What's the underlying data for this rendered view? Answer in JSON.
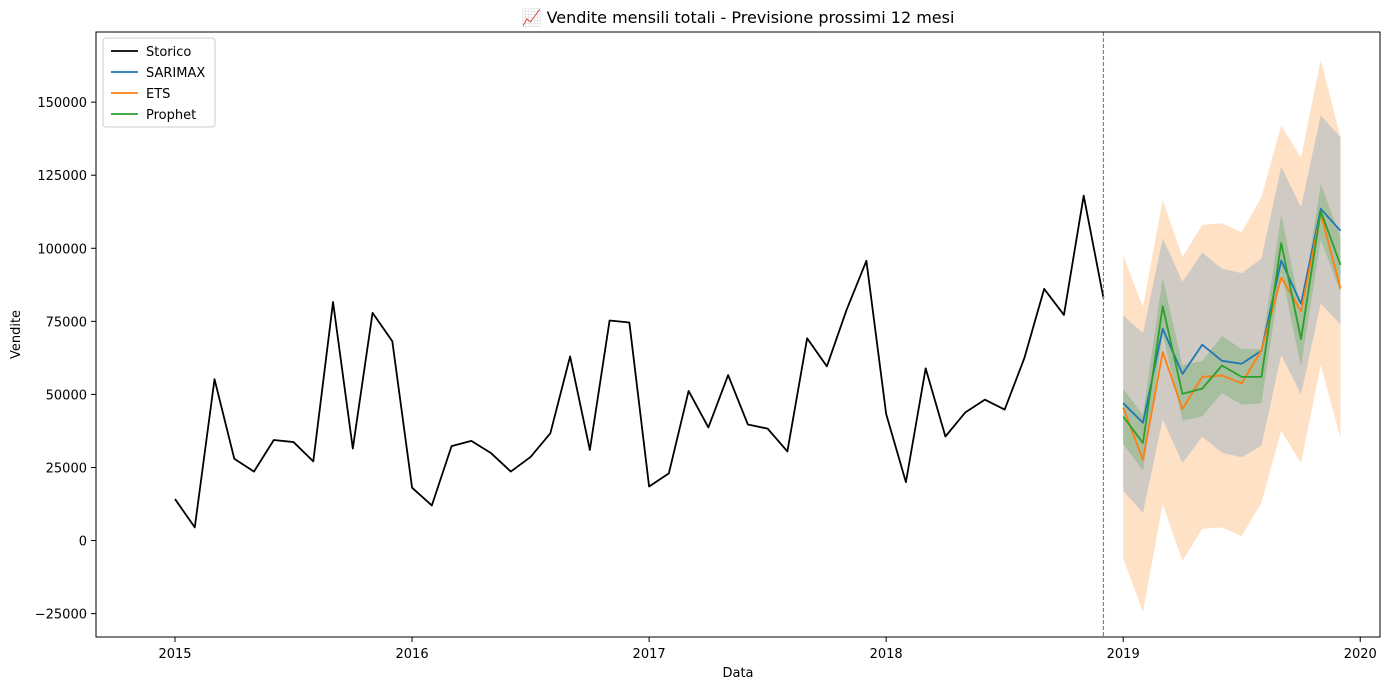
{
  "chart_data": {
    "type": "line",
    "title": "📈 Vendite mensili totali - Previsione prossimi 12 mesi",
    "xlabel": "Data",
    "ylabel": "Vendite",
    "xlim": [
      "2014-09",
      "2020-02"
    ],
    "ylim": [
      -33000,
      174000
    ],
    "x_ticks": [
      "2015",
      "2016",
      "2017",
      "2018",
      "2019",
      "2020"
    ],
    "y_ticks": [
      -25000,
      0,
      25000,
      50000,
      75000,
      100000,
      125000,
      150000
    ],
    "y_tick_labels": [
      "−25000",
      "0",
      "25000",
      "50000",
      "75000",
      "100000",
      "125000",
      "150000"
    ],
    "grid": false,
    "legend_position": "top-left",
    "forecast_start": "2018-12",
    "colors": {
      "storico": "#000000",
      "sarimax": "#1f77b4",
      "ets": "#ff7f0e",
      "prophet": "#2ca02c",
      "ets_band": "#ffdcbc",
      "sarimax_band": "#a9b8c5",
      "prophet_band": "#2ca02c",
      "cutoff": "#808080"
    },
    "history": {
      "name": "Storico",
      "x": [
        "2015-01",
        "2015-02",
        "2015-03",
        "2015-04",
        "2015-05",
        "2015-06",
        "2015-07",
        "2015-08",
        "2015-09",
        "2015-10",
        "2015-11",
        "2015-12",
        "2016-01",
        "2016-02",
        "2016-03",
        "2016-04",
        "2016-05",
        "2016-06",
        "2016-07",
        "2016-08",
        "2016-09",
        "2016-10",
        "2016-11",
        "2016-12",
        "2017-01",
        "2017-02",
        "2017-03",
        "2017-04",
        "2017-05",
        "2017-06",
        "2017-07",
        "2017-08",
        "2017-09",
        "2017-10",
        "2017-11",
        "2017-12",
        "2018-01",
        "2018-02",
        "2018-03",
        "2018-04",
        "2018-05",
        "2018-06",
        "2018-07",
        "2018-08",
        "2018-09",
        "2018-10",
        "2018-11",
        "2018-12"
      ],
      "values": [
        14200,
        4500,
        55200,
        28000,
        23600,
        34400,
        33700,
        27100,
        81600,
        31500,
        77900,
        68200,
        18100,
        12000,
        32300,
        34100,
        29900,
        23600,
        28600,
        36700,
        63000,
        31000,
        75300,
        74600,
        18500,
        23000,
        51200,
        38700,
        56600,
        39700,
        38300,
        30500,
        69200,
        59600,
        79000,
        95700,
        43300,
        20000,
        58900,
        35600,
        43800,
        48200,
        44800,
        62500,
        86100,
        77200,
        118000,
        83000
      ]
    },
    "forecast_x": [
      "2019-01",
      "2019-02",
      "2019-03",
      "2019-04",
      "2019-05",
      "2019-06",
      "2019-07",
      "2019-08",
      "2019-09",
      "2019-10",
      "2019-11",
      "2019-12"
    ],
    "series": [
      {
        "name": "SARIMAX",
        "values": [
          47000,
          40300,
          72500,
          57000,
          67000,
          61500,
          60500,
          65000,
          95800,
          81000,
          113500,
          106000
        ],
        "lower": [
          17000,
          9500,
          41500,
          26500,
          35500,
          30000,
          28500,
          32500,
          63500,
          50000,
          81000,
          74000
        ],
        "upper": [
          77000,
          71000,
          103500,
          88500,
          98500,
          93000,
          91500,
          96500,
          128000,
          114000,
          145500,
          138000
        ]
      },
      {
        "name": "ETS",
        "values": [
          45500,
          27600,
          64500,
          45000,
          56000,
          56500,
          53800,
          65200,
          90000,
          78500,
          112000,
          86200
        ],
        "lower": [
          -6000,
          -24500,
          12500,
          -7000,
          4000,
          4500,
          1500,
          13000,
          37500,
          26500,
          60000,
          35000
        ],
        "upper": [
          97500,
          80000,
          116500,
          97000,
          108000,
          108500,
          105500,
          117500,
          142000,
          131000,
          164500,
          138000
        ]
      },
      {
        "name": "Prophet",
        "values": [
          42400,
          33400,
          80200,
          50200,
          52000,
          59900,
          56000,
          56000,
          101800,
          68900,
          112700,
          94300
        ],
        "lower": [
          33000,
          24000,
          70500,
          41000,
          42500,
          50500,
          46500,
          47000,
          92000,
          59500,
          103000,
          85000
        ],
        "upper": [
          52000,
          43000,
          90000,
          60000,
          61500,
          70000,
          65500,
          65500,
          111500,
          78500,
          122000,
          104000
        ]
      }
    ]
  }
}
